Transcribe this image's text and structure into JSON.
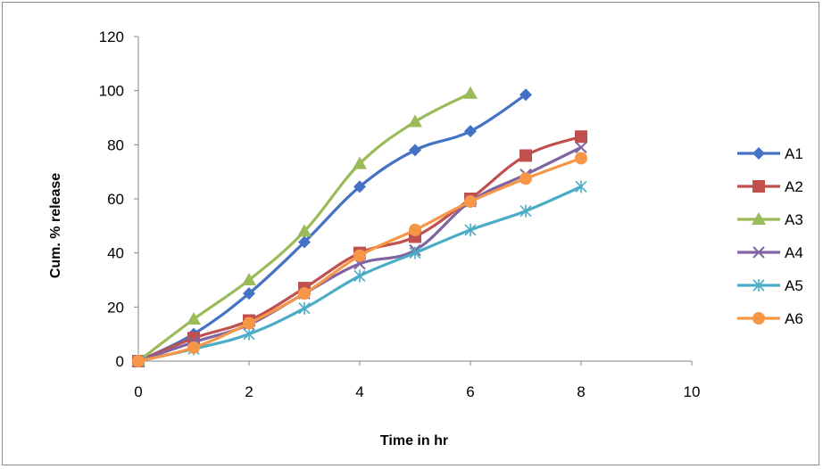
{
  "chart_data": {
    "type": "line",
    "title": "",
    "xlabel": "Time in hr",
    "ylabel": "Cum. % release",
    "xlim": [
      0,
      10
    ],
    "ylim": [
      0,
      120
    ],
    "xticks": [
      0,
      2,
      4,
      6,
      8,
      10
    ],
    "yticks": [
      0,
      20,
      40,
      60,
      80,
      100,
      120
    ],
    "grid": false,
    "legend_position": "right",
    "series": [
      {
        "name": "A1",
        "color": "#4472C4",
        "marker": "diamond",
        "x": [
          0,
          1,
          2,
          3,
          4,
          5,
          6,
          7
        ],
        "y": [
          0,
          10,
          25,
          44,
          64.5,
          78,
          85,
          98.5
        ]
      },
      {
        "name": "A2",
        "color": "#C0504D",
        "marker": "square",
        "x": [
          0,
          1,
          2,
          3,
          4,
          5,
          6,
          7,
          8
        ],
        "y": [
          0,
          8.5,
          15,
          27,
          40,
          46,
          60,
          76,
          83
        ]
      },
      {
        "name": "A3",
        "color": "#9BBB59",
        "marker": "triangle",
        "x": [
          0,
          1,
          2,
          3,
          4,
          5,
          6
        ],
        "y": [
          0,
          15.5,
          30,
          48,
          73,
          88.5,
          99
        ]
      },
      {
        "name": "A4",
        "color": "#8064A2",
        "marker": "x",
        "x": [
          0,
          1,
          2,
          3,
          4,
          5,
          6,
          7,
          8
        ],
        "y": [
          0,
          7,
          13.5,
          25,
          36,
          41,
          59,
          69,
          79
        ]
      },
      {
        "name": "A5",
        "color": "#4BACC6",
        "marker": "star",
        "x": [
          0,
          1,
          2,
          3,
          4,
          5,
          6,
          7,
          8
        ],
        "y": [
          0,
          4.5,
          10,
          19.5,
          31.5,
          40,
          48.5,
          55.5,
          64.5
        ]
      },
      {
        "name": "A6",
        "color": "#F79646",
        "marker": "circle",
        "x": [
          0,
          1,
          2,
          3,
          4,
          5,
          6,
          7,
          8
        ],
        "y": [
          0,
          5,
          14,
          25,
          39,
          48.5,
          59,
          67.5,
          75
        ]
      }
    ]
  }
}
